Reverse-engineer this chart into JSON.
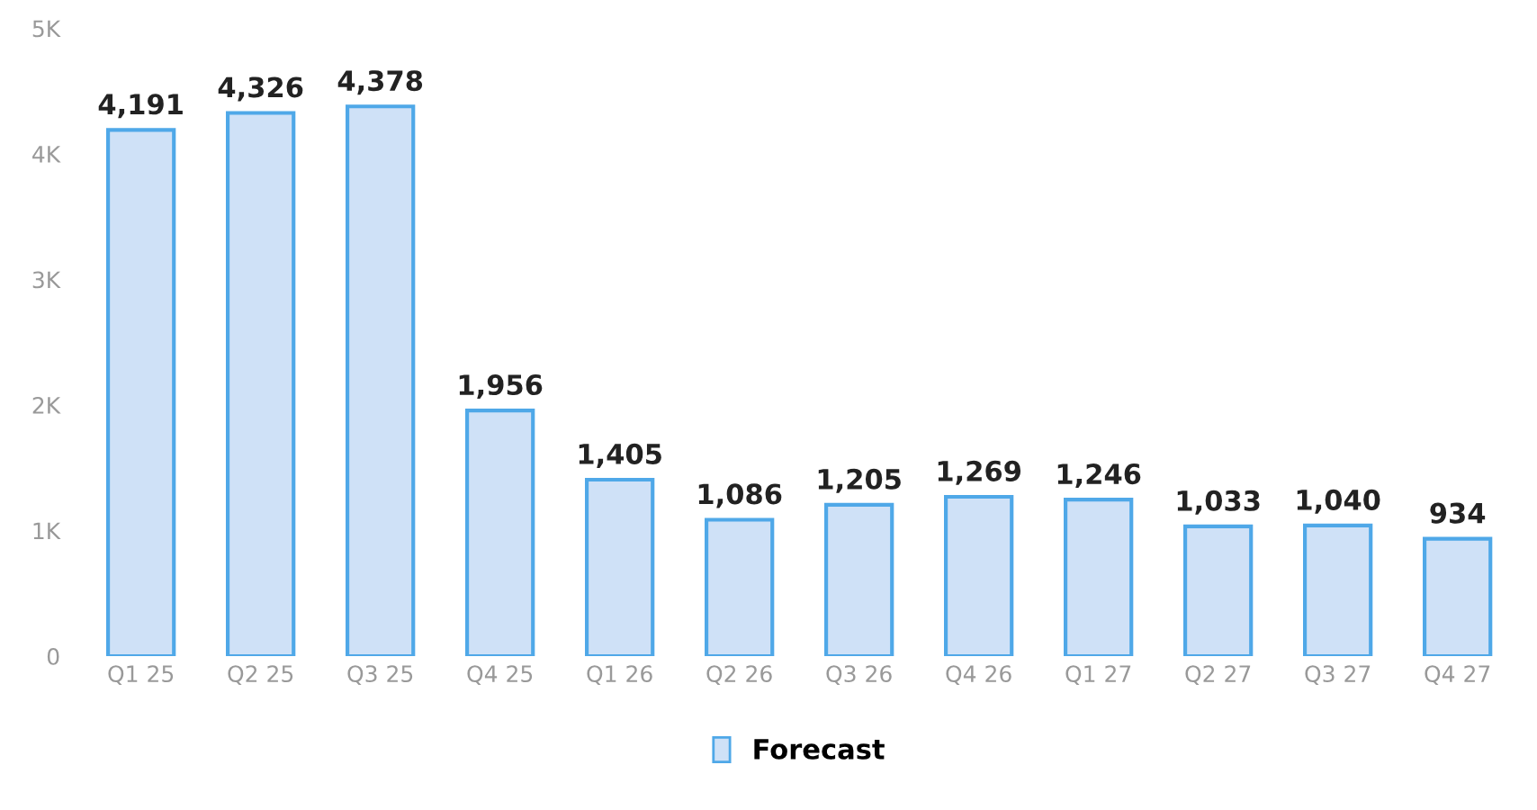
{
  "chart_data": {
    "type": "bar",
    "categories": [
      "Q1 25",
      "Q2 25",
      "Q3 25",
      "Q4 25",
      "Q1 26",
      "Q2 26",
      "Q3 26",
      "Q4 26",
      "Q1 27",
      "Q2 27",
      "Q3 27",
      "Q4 27"
    ],
    "series": [
      {
        "name": "Forecast",
        "color": "#cfe1f7",
        "values": [
          4191,
          4326,
          4378,
          1956,
          1405,
          1086,
          1205,
          1269,
          1246,
          1033,
          1040,
          934
        ]
      }
    ],
    "ylim": [
      0,
      5000
    ],
    "yticks": [
      0,
      {
        "value": 1000,
        "label": "1K"
      },
      {
        "value": 2000,
        "label": "2K"
      },
      {
        "value": 3000,
        "label": "3K"
      },
      {
        "value": 4000,
        "label": "4K"
      },
      {
        "value": 5000,
        "label": "5K"
      }
    ],
    "value_labels": [
      "4,191",
      "4,326",
      "4,378",
      "1,956",
      "1,405",
      "1,086",
      "1,205",
      "1,269",
      "1,246",
      "1,033",
      "1,040",
      "934"
    ],
    "grid": false,
    "legend": "bottom"
  }
}
